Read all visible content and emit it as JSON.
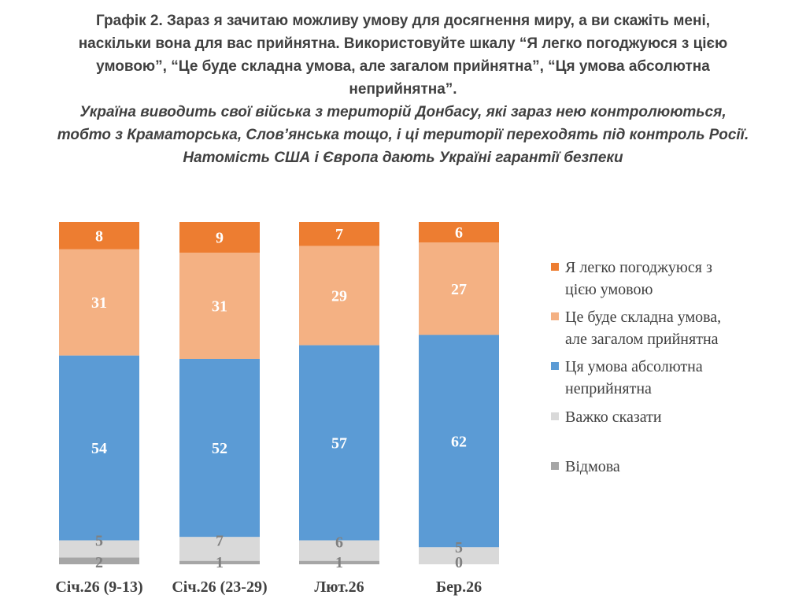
{
  "heading": {
    "title_lines": [
      "Графік 2. Зараз я зачитаю можливу умову для досягнення миру, а ви скажіть мені,",
      "наскільки вона для вас прийнятна. Використовуйте шкалу “Я легко погоджуюся з цією",
      "умовою”, “Це буде складна умова, але загалом прийнятна”, “Ця умова абсолютна",
      "неприйнятна”."
    ],
    "subtitle_lines": [
      "Україна виводить свої війська з територій Донбасу, які зараз нею контролюються,",
      "тобто з Краматорська, Слов’янська тощо, і ці території переходять під контроль Росії.",
      "Натомість США і Європа дають Україні гарантії безпеки"
    ]
  },
  "chart_data": {
    "type": "bar",
    "stacked": true,
    "orientation": "vertical",
    "categories": [
      "Січ.26 (9-13)",
      "Січ.26 (23-29)",
      "Лют.26",
      "Бер.26"
    ],
    "series": [
      {
        "name": "Відмова",
        "values": [
          2,
          1,
          1,
          0
        ],
        "color": "#a6a6a6",
        "label_color": "#808080"
      },
      {
        "name": "Важко сказати",
        "values": [
          5,
          7,
          6,
          5
        ],
        "color": "#d9d9d9",
        "label_color": "#808080"
      },
      {
        "name": "Ця умова абсолютна неприйнятна",
        "legend_lines": [
          "Ця умова абсолютна",
          "неприйнятна"
        ],
        "values": [
          54,
          52,
          57,
          62
        ],
        "color": "#5b9bd5",
        "label_color": "#ffffff"
      },
      {
        "name": "Це буде складна умова, але загалом прийнятна",
        "legend_lines": [
          "Це буде складна умова,",
          "але загалом прийнятна"
        ],
        "values": [
          31,
          31,
          29,
          27
        ],
        "color": "#f4b183",
        "label_color": "#ffffff"
      },
      {
        "name": "Я легко погоджуюся з цією умовою",
        "legend_lines": [
          "Я легко погоджуюся з",
          "цією умовою"
        ],
        "values": [
          8,
          9,
          7,
          6
        ],
        "color": "#ed7d31",
        "label_color": "#ffffff"
      }
    ],
    "legend_order": [
      "Я легко погоджуюся з цією умовою",
      "Це буде складна умова, але загалом прийнятна",
      "Ця умова абсолютна неприйнятна",
      "Важко сказати",
      "Відмова"
    ],
    "ylim": [
      0,
      100
    ],
    "legend_position": "right",
    "grid": false
  }
}
